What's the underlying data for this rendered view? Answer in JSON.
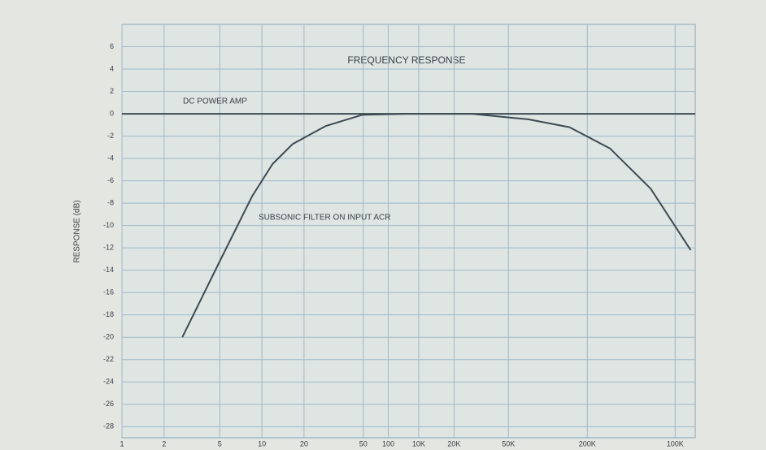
{
  "chart_data": {
    "type": "line",
    "title": "FREQUENCY RESPONSE",
    "y_label": "RESPONSE (dB)",
    "log_x": true,
    "grid": true,
    "xlim": [
      1,
      12500
    ],
    "ylim": [
      -29,
      8
    ],
    "xticks": [
      1,
      2,
      5,
      10,
      20,
      {
        "value": 53,
        "label": "50"
      },
      {
        "value": 80,
        "label": "100"
      },
      {
        "value": 132,
        "label": "10K"
      },
      {
        "value": 236,
        "label": "20K"
      },
      {
        "value": 578,
        "label": "50K"
      },
      {
        "value": 2117,
        "label": "200K"
      },
      {
        "value": 8980,
        "label": "100K"
      }
    ],
    "yticks": [
      6,
      4,
      2,
      0,
      -2,
      -4,
      -6,
      -8,
      -10,
      -12,
      -14,
      -16,
      -18,
      -20,
      -22,
      -24,
      -26,
      -28
    ],
    "series": [
      {
        "name": "DC POWER AMP",
        "color": "#3d4a52",
        "x": [
          1,
          12500
        ],
        "values": [
          0,
          0
        ]
      },
      {
        "name": "SUBSONIC FILTER ON INPUT ACR",
        "color": "#3d4a52",
        "x": [
          2.7,
          5,
          8.5,
          11.9,
          16.6,
          28.5,
          52,
          108,
          316,
          800,
          1580,
          3070,
          6000,
          11600
        ],
        "values": [
          -20,
          -13.2,
          -7.4,
          -4.5,
          -2.7,
          -1.1,
          -0.1,
          0,
          0,
          -0.5,
          -1.2,
          -3.1,
          -6.7,
          -12.2
        ]
      }
    ]
  }
}
